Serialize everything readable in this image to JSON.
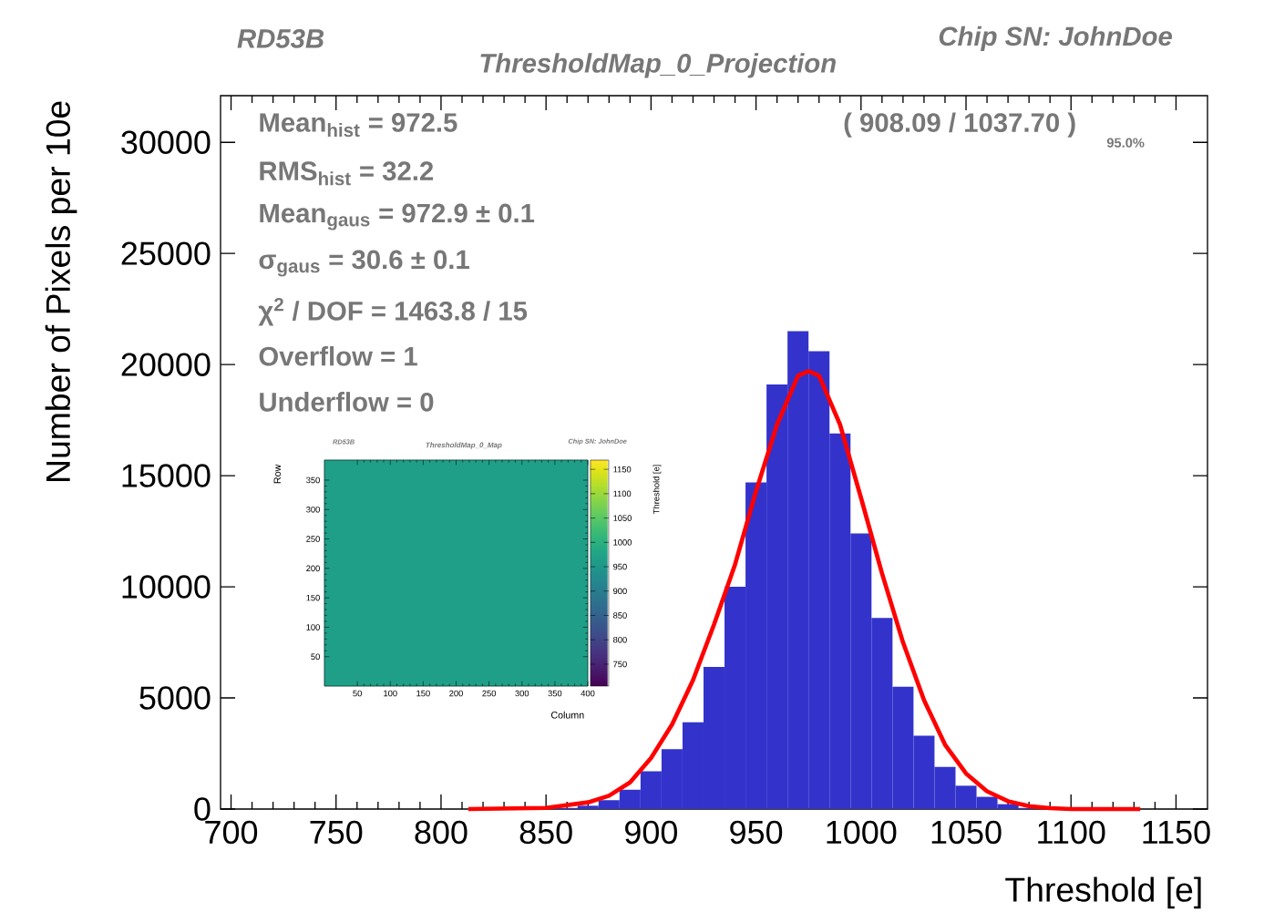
{
  "chart_data": [
    {
      "type": "histogram",
      "title": "ThresholdMap_0_Projection",
      "xlabel": "Threshold [e]",
      "ylabel": "Number of Pixels per 10e",
      "annotations": [
        "RD53B",
        "Chip SN: JohnDoe",
        "Mean$_{hist}$ = 972.5",
        "RMS$_{hist}$ = 32.2",
        "Mean$_{gaus}$ = 972.9 ± 0.1",
        "σ$_{gaus}$ = 30.6 ± 0.1",
        "χ$^{2}$ / DOF = 1463.8 / 15",
        "Overflow = 1",
        "Underflow = 0",
        "( 908.09 / 1037.70 )",
        "95.0%"
      ],
      "bins": [
        855,
        865,
        875,
        885,
        895,
        905,
        915,
        925,
        935,
        945,
        955,
        965,
        975,
        985,
        995,
        1005,
        1015,
        1025,
        1035,
        1045,
        1055,
        1065,
        1075,
        1085
      ],
      "values": [
        50,
        150,
        400,
        870,
        1700,
        2700,
        3900,
        6400,
        10000,
        14700,
        19100,
        21500,
        20600,
        16900,
        12400,
        8600,
        5500,
        3300,
        1900,
        1050,
        550,
        220,
        50
      ],
      "color": "#3333cc",
      "series": [
        {
          "type": "line",
          "color": "#ff0000",
          "x": [
            813,
            850,
            870,
            880,
            890,
            900,
            910,
            920,
            930,
            940,
            950,
            960,
            970,
            975,
            980,
            990,
            1000,
            1010,
            1020,
            1030,
            1040,
            1050,
            1060,
            1070,
            1080,
            1090,
            1100,
            1133
          ],
          "values": [
            0,
            50,
            300,
            600,
            1200,
            2300,
            3800,
            5800,
            8300,
            11000,
            14300,
            17300,
            19500,
            19700,
            19500,
            17300,
            14000,
            10600,
            7500,
            4900,
            2900,
            1600,
            800,
            350,
            130,
            40,
            0,
            0
          ]
        }
      ],
      "xlim": [
        695,
        1165
      ],
      "ylim": [
        0,
        32100
      ],
      "xticks": [
        700,
        750,
        800,
        850,
        900,
        950,
        1000,
        1050,
        1100,
        1150
      ],
      "yticks": [
        0,
        5000,
        10000,
        15000,
        20000,
        25000,
        30000
      ]
    },
    {
      "type": "heatmap",
      "title": "ThresholdMap_0_Map",
      "xlabel": "Column",
      "ylabel": "Row",
      "clabel": "Threshold [e]",
      "annotations": [
        "RD53B",
        "Chip SN: JohnDoe"
      ],
      "xlim": [
        0,
        400
      ],
      "ylim": [
        0,
        384
      ],
      "xticks": [
        50,
        100,
        150,
        200,
        250,
        300,
        350,
        400
      ],
      "yticks": [
        50,
        100,
        150,
        200,
        250,
        300,
        350
      ],
      "cells": [
        [
          965
        ]
      ],
      "clim": [
        705,
        1169
      ],
      "cticks": [
        750,
        800,
        850,
        900,
        950,
        1000,
        1050,
        1100,
        1150
      ]
    }
  ]
}
